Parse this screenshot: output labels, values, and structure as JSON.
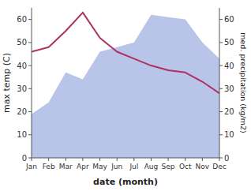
{
  "chart_data": {
    "type": "line",
    "xlabel": "date (month)",
    "ylabel": "max temp (C)",
    "y2label": "med. precipitation (kg/m2)",
    "categories": [
      "Jan",
      "Feb",
      "Mar",
      "Apr",
      "May",
      "Jun",
      "Jul",
      "Aug",
      "Sep",
      "Oct",
      "Nov",
      "Dec"
    ],
    "series": [
      {
        "type": "area",
        "axis": "y2",
        "color": "#b8c4e8",
        "values": [
          19,
          24,
          37,
          34,
          46,
          48,
          50,
          62,
          61,
          60,
          50,
          43
        ]
      },
      {
        "type": "line",
        "axis": "y",
        "color": "#b03060",
        "values": [
          46,
          48,
          55,
          63,
          52,
          46,
          43,
          40,
          38,
          37,
          33,
          28
        ]
      }
    ],
    "ylim": [
      0,
      65
    ],
    "yticks": [
      0,
      10,
      20,
      30,
      40,
      50,
      60
    ],
    "y2lim": [
      0,
      65
    ],
    "y2ticks": [
      0,
      10,
      20,
      30,
      40,
      50,
      60
    ],
    "grid": false
  }
}
